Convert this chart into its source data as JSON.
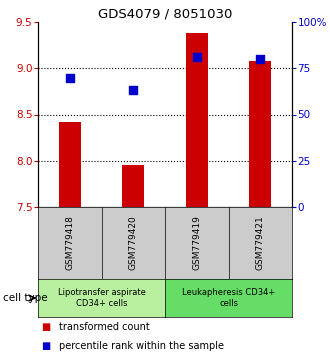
{
  "title": "GDS4079 / 8051030",
  "samples": [
    "GSM779418",
    "GSM779420",
    "GSM779419",
    "GSM779421"
  ],
  "bar_values": [
    8.42,
    7.95,
    9.38,
    9.08
  ],
  "dot_values": [
    70,
    63,
    81,
    80
  ],
  "bar_color": "#cc0000",
  "dot_color": "#0000cc",
  "left_ylim": [
    7.5,
    9.5
  ],
  "right_ylim": [
    0,
    100
  ],
  "left_yticks": [
    7.5,
    8.0,
    8.5,
    9.0,
    9.5
  ],
  "right_yticks": [
    0,
    25,
    50,
    75,
    100
  ],
  "right_yticklabels": [
    "0",
    "25",
    "50",
    "75",
    "100%"
  ],
  "grid_values": [
    8.0,
    8.5,
    9.0
  ],
  "groups": [
    {
      "label": "Lipotransfer aspirate\nCD34+ cells",
      "indices": [
        0,
        1
      ],
      "color": "#b8f0a0"
    },
    {
      "label": "Leukapheresis CD34+\ncells",
      "indices": [
        2,
        3
      ],
      "color": "#66dd66"
    }
  ],
  "legend_items": [
    {
      "label": "transformed count",
      "color": "#cc0000"
    },
    {
      "label": "percentile rank within the sample",
      "color": "#0000cc"
    }
  ],
  "cell_type_label": "cell type",
  "bar_width": 0.35,
  "dot_size": 40
}
